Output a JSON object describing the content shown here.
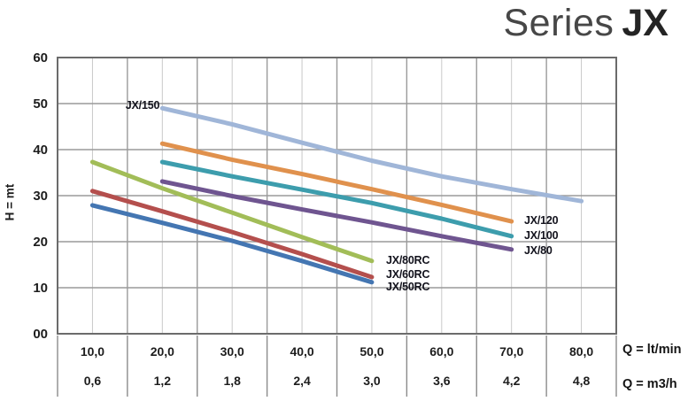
{
  "title": {
    "light": "Series",
    "bold": "JX"
  },
  "chart_data": {
    "type": "line",
    "title": "Series JX",
    "ylabel": "H = mt",
    "grid": "on",
    "legend_position": "inline-labels",
    "x_axis": {
      "unit_primary": "Q = lt/min",
      "unit_secondary": "Q = m3/h",
      "ticks_ltmin": [
        "10,0",
        "20,0",
        "30,0",
        "40,0",
        "50,0",
        "60,0",
        "70,0",
        "80,0"
      ],
      "ticks_m3h": [
        "0,6",
        "1,2",
        "1,8",
        "2,4",
        "3,0",
        "3,6",
        "4,2",
        "4,8"
      ],
      "range_ltmin": [
        5,
        85
      ]
    },
    "y_axis": {
      "ticks": [
        "60",
        "50",
        "40",
        "30",
        "20",
        "10",
        "00"
      ],
      "range": [
        0,
        60
      ]
    },
    "series": [
      {
        "name": "JX/150",
        "color": "#a0b6d8",
        "points": [
          [
            20,
            49.0
          ],
          [
            30,
            45.5
          ],
          [
            40,
            41.5
          ],
          [
            50,
            37.6
          ],
          [
            60,
            34.2
          ],
          [
            70,
            31.4
          ],
          [
            80,
            28.8
          ]
        ]
      },
      {
        "name": "JX/120",
        "color": "#e0914d",
        "points": [
          [
            20,
            41.3
          ],
          [
            30,
            37.8
          ],
          [
            40,
            34.7
          ],
          [
            50,
            31.4
          ],
          [
            60,
            28.0
          ],
          [
            70,
            24.4
          ]
        ]
      },
      {
        "name": "JX/100",
        "color": "#3d9dad",
        "points": [
          [
            20,
            37.3
          ],
          [
            30,
            34.2
          ],
          [
            40,
            31.3
          ],
          [
            50,
            28.4
          ],
          [
            60,
            25.0
          ],
          [
            70,
            21.2
          ]
        ]
      },
      {
        "name": "JX/80",
        "color": "#6f5590",
        "points": [
          [
            20,
            33.1
          ],
          [
            30,
            29.9
          ],
          [
            40,
            27.0
          ],
          [
            50,
            24.2
          ],
          [
            60,
            21.2
          ],
          [
            70,
            18.3
          ]
        ]
      },
      {
        "name": "JX/80RC",
        "color": "#a2bd58",
        "points": [
          [
            10,
            37.3
          ],
          [
            20,
            31.6
          ],
          [
            30,
            26.3
          ],
          [
            40,
            21.0
          ],
          [
            50,
            15.8
          ]
        ]
      },
      {
        "name": "JX/60RC",
        "color": "#b44f4d",
        "points": [
          [
            10,
            31.0
          ],
          [
            20,
            26.6
          ],
          [
            30,
            22.1
          ],
          [
            40,
            17.3
          ],
          [
            50,
            12.3
          ]
        ]
      },
      {
        "name": "JX/50RC",
        "color": "#4476b2",
        "points": [
          [
            10,
            27.9
          ],
          [
            20,
            24.1
          ],
          [
            30,
            20.2
          ],
          [
            40,
            15.8
          ],
          [
            50,
            11.2
          ]
        ]
      }
    ]
  }
}
